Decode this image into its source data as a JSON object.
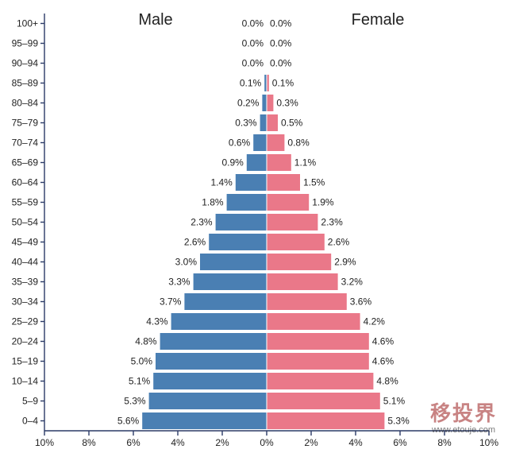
{
  "chart_data": {
    "type": "bar",
    "subtype": "population-pyramid",
    "left_title": "Male",
    "right_title": "Female",
    "categories": [
      "100+",
      "95–99",
      "90–94",
      "85–89",
      "80–84",
      "75–79",
      "70–74",
      "65–69",
      "60–64",
      "55–59",
      "50–54",
      "45–49",
      "40–44",
      "35–39",
      "30–34",
      "25–29",
      "20–24",
      "15–19",
      "10–14",
      "5–9",
      "0–4"
    ],
    "series": [
      {
        "name": "Male",
        "color": "#4a7fb3",
        "values": [
          0.0,
          0.0,
          0.0,
          0.1,
          0.2,
          0.3,
          0.6,
          0.9,
          1.4,
          1.8,
          2.3,
          2.6,
          3.0,
          3.3,
          3.7,
          4.3,
          4.8,
          5.0,
          5.1,
          5.3,
          5.6
        ]
      },
      {
        "name": "Female",
        "color": "#ea7889",
        "values": [
          0.0,
          0.0,
          0.0,
          0.1,
          0.3,
          0.5,
          0.8,
          1.1,
          1.5,
          1.9,
          2.3,
          2.6,
          2.9,
          3.2,
          3.6,
          4.2,
          4.6,
          4.6,
          4.8,
          5.1,
          5.3
        ]
      }
    ],
    "xlim": [
      -10,
      10
    ],
    "x_ticks": [
      "10%",
      "8%",
      "6%",
      "4%",
      "2%",
      "0%",
      "2%",
      "4%",
      "6%",
      "8%",
      "10%"
    ],
    "value_suffix": "%"
  },
  "watermark": {
    "logo_text": "移投界",
    "url": "www.etouje.com"
  }
}
